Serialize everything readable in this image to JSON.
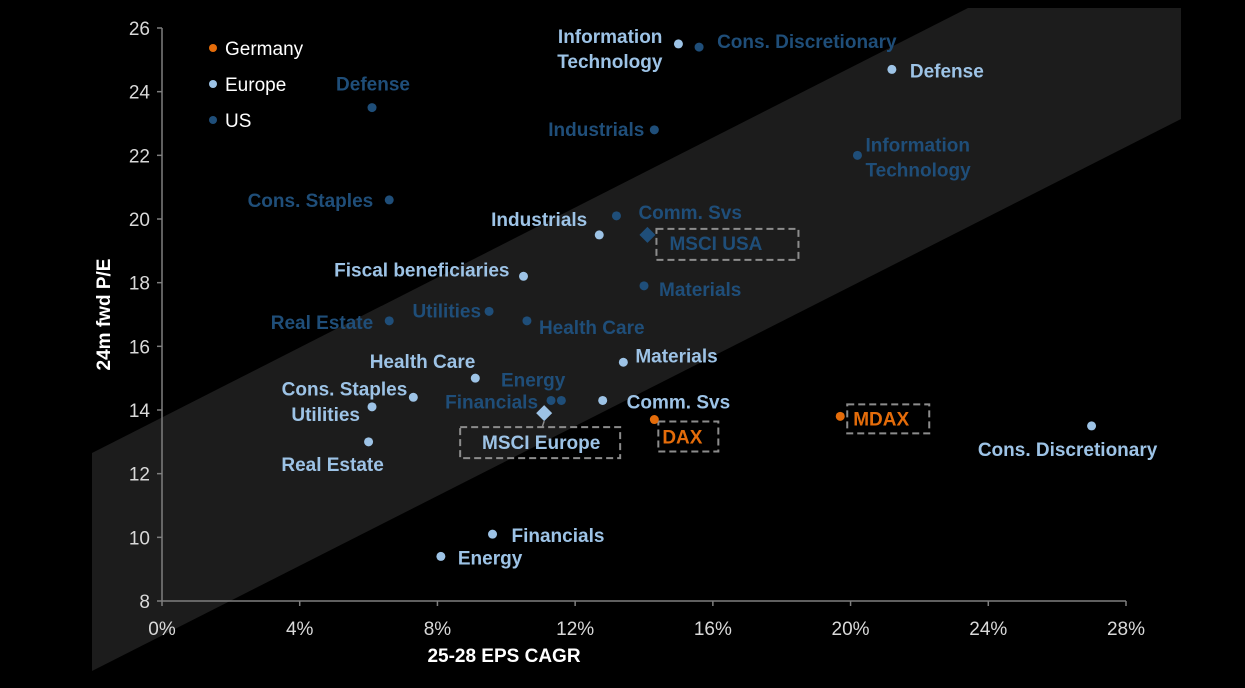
{
  "chart_data": {
    "type": "scatter",
    "title": "",
    "xlabel": "25-28 EPS CAGR",
    "ylabel": "24m fwd P/E",
    "xlim": [
      0,
      28
    ],
    "ylim": [
      8,
      26
    ],
    "x_ticks": [
      0,
      4,
      8,
      12,
      16,
      20,
      24,
      28
    ],
    "x_tick_labels": [
      "0%",
      "4%",
      "8%",
      "12%",
      "16%",
      "20%",
      "24%",
      "28%"
    ],
    "y_ticks": [
      8,
      10,
      12,
      14,
      16,
      18,
      20,
      22,
      24,
      26
    ],
    "y_tick_labels": [
      "8",
      "10",
      "12",
      "14",
      "16",
      "18",
      "20",
      "22",
      "24",
      "26"
    ],
    "grid": false,
    "legend_position": "top-left",
    "shaded_band": {
      "description": "Diagonal shaded band of fair-value relationship",
      "color": "#1c1c1c"
    },
    "series": [
      {
        "name": "Germany",
        "color": "#e46c0a",
        "label_color": "#e46c0a",
        "points": [
          {
            "label": "DAX",
            "x": 14.3,
            "y": 13.7,
            "boxed": true
          },
          {
            "label": "MDAX",
            "x": 19.7,
            "y": 13.8,
            "boxed": true
          }
        ]
      },
      {
        "name": "Europe",
        "color": "#9dc3e6",
        "label_color": "#9dc3e6",
        "points": [
          {
            "label": "Information Technology",
            "x": 15.0,
            "y": 25.5
          },
          {
            "label": "Defense",
            "x": 21.2,
            "y": 24.7
          },
          {
            "label": "Industrials",
            "x": 12.7,
            "y": 19.5
          },
          {
            "label": "Fiscal beneficiaries",
            "x": 10.5,
            "y": 18.2
          },
          {
            "label": "Materials",
            "x": 13.4,
            "y": 15.5
          },
          {
            "label": "Health Care",
            "x": 9.1,
            "y": 15.0
          },
          {
            "label": "Cons. Staples",
            "x": 7.3,
            "y": 14.4
          },
          {
            "label": "Comm. Svs",
            "x": 12.8,
            "y": 14.3
          },
          {
            "label": "Utilities",
            "x": 6.1,
            "y": 14.1
          },
          {
            "label": "Cons. Discretionary",
            "x": 27.0,
            "y": 13.5
          },
          {
            "label": "Real Estate",
            "x": 6.0,
            "y": 13.0
          },
          {
            "label": "Financials",
            "x": 9.6,
            "y": 10.1
          },
          {
            "label": "Energy",
            "x": 8.1,
            "y": 9.4
          },
          {
            "label": "MSCI Europe",
            "x": 11.1,
            "y": 13.9,
            "marker": "diamond",
            "boxed": true
          }
        ]
      },
      {
        "name": "US",
        "color": "#1f4e79",
        "label_color": "#1f4e79",
        "points": [
          {
            "label": "Cons. Discretionary",
            "x": 15.6,
            "y": 25.4
          },
          {
            "label": "Defense",
            "x": 6.1,
            "y": 23.5
          },
          {
            "label": "Industrials",
            "x": 14.3,
            "y": 22.8
          },
          {
            "label": "Information Technology",
            "x": 20.2,
            "y": 22.0
          },
          {
            "label": "Cons. Staples",
            "x": 6.6,
            "y": 20.6
          },
          {
            "label": "Comm. Svs",
            "x": 13.2,
            "y": 20.1
          },
          {
            "label": "Materials",
            "x": 14.0,
            "y": 17.9
          },
          {
            "label": "Utilities",
            "x": 9.5,
            "y": 17.1
          },
          {
            "label": "Real Estate",
            "x": 6.6,
            "y": 16.8
          },
          {
            "label": "Health Care",
            "x": 10.6,
            "y": 16.8
          },
          {
            "label": "Financials",
            "x": 11.3,
            "y": 14.3
          },
          {
            "label": "Energy",
            "x": 11.6,
            "y": 14.3
          },
          {
            "label": "MSCI USA",
            "x": 14.1,
            "y": 19.5,
            "marker": "diamond",
            "boxed": true
          }
        ]
      }
    ]
  }
}
